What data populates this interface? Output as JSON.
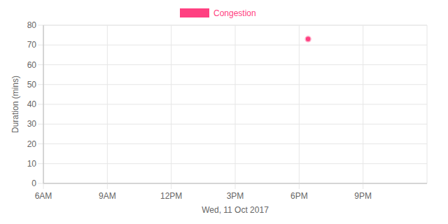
{
  "chart_data": {
    "type": "scatter",
    "x_label": "Wed, 11 Oct 2017",
    "y_label": "Duration (mins)",
    "x": [
      18.42
    ],
    "series": [
      {
        "name": "Congestion",
        "color": "#ff4081",
        "values": [
          73
        ],
        "marker": "circle"
      }
    ],
    "xlim": [
      6,
      24
    ],
    "xticks": [
      {
        "value": 6,
        "label": "6AM"
      },
      {
        "value": 9,
        "label": "9AM"
      },
      {
        "value": 12,
        "label": "12PM"
      },
      {
        "value": 15,
        "label": "3PM"
      },
      {
        "value": 18,
        "label": "6PM"
      },
      {
        "value": 21,
        "label": "9PM"
      }
    ],
    "ylim": [
      0,
      80
    ],
    "yticks": [
      0,
      10,
      20,
      30,
      40,
      50,
      60,
      70,
      80
    ],
    "grid": true,
    "legend": "top"
  }
}
